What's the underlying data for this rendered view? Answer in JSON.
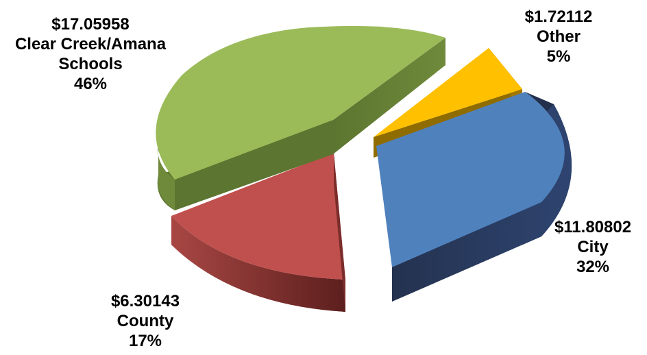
{
  "chart_data": {
    "type": "pie",
    "style": "3d-exploded",
    "title": "",
    "slices": [
      {
        "amount": "$1.72112",
        "category": "Other",
        "percent": "5%",
        "value": 1.72112,
        "color": "#FFC000"
      },
      {
        "amount": "$11.80802",
        "category": "City",
        "percent": "32%",
        "value": 11.80802,
        "color": "#4F81BD"
      },
      {
        "amount": "$6.30143",
        "category": "County",
        "percent": "17%",
        "value": 6.30143,
        "color": "#C0504D"
      },
      {
        "amount": "$17.05958",
        "category_lines": [
          "Clear Creek/Amana",
          "Schools"
        ],
        "percent": "46%",
        "value": 17.05958,
        "color": "#9BBB59"
      }
    ]
  }
}
